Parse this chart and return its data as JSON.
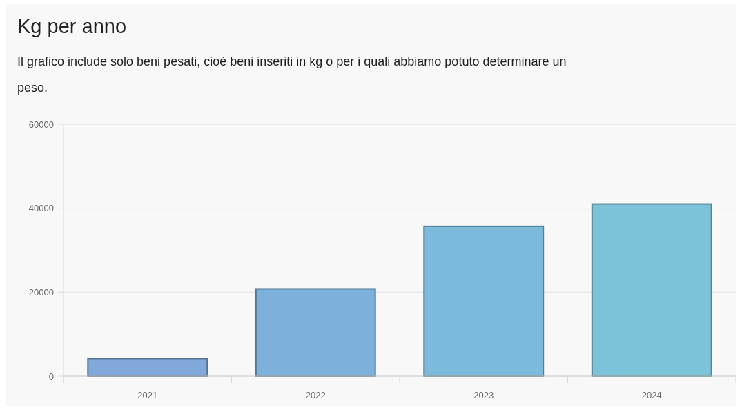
{
  "chart_data": {
    "type": "bar",
    "title": "Kg per anno",
    "subtitle": "Il grafico include solo beni pesati, cioè beni inseriti in kg o per i quali abbiamo potuto determinare un peso.",
    "categories": [
      "2021",
      "2022",
      "2023",
      "2024"
    ],
    "values": [
      4200,
      20800,
      35700,
      41000
    ],
    "colors": [
      "#80a9d9",
      "#7db1db",
      "#7bbadb",
      "#7cc3da"
    ],
    "ylim": [
      0,
      60000
    ],
    "yticks": [
      0,
      20000,
      40000,
      60000
    ],
    "grid": "y"
  }
}
